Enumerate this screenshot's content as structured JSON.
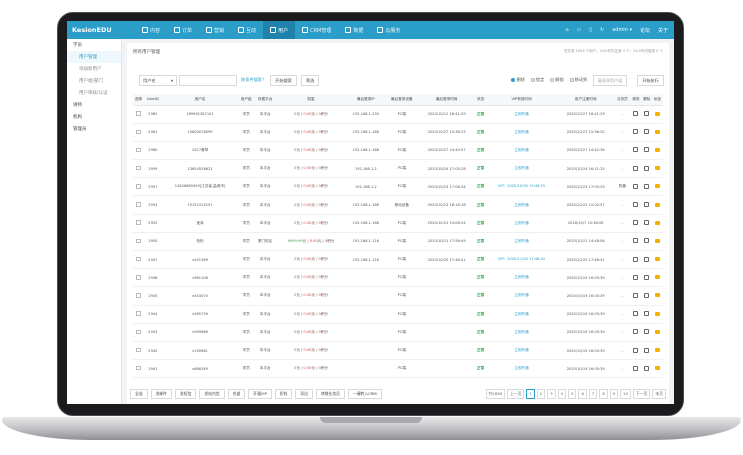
{
  "app": {
    "logo": "KesionEDU",
    "user": "admin ▾",
    "links": [
      "论坛",
      "关于"
    ]
  },
  "nav": [
    {
      "label": "内容",
      "icon": "grid-icon"
    },
    {
      "label": "订单",
      "icon": "order-icon"
    },
    {
      "label": "营销",
      "icon": "tag-icon"
    },
    {
      "label": "互动",
      "icon": "chat-icon"
    },
    {
      "label": "用户",
      "icon": "user-icon"
    },
    {
      "label": "CRM管理",
      "icon": "crm-icon"
    },
    {
      "label": "数据",
      "icon": "chart-icon"
    },
    {
      "label": "云服务",
      "icon": "cloud-icon"
    }
  ],
  "sidebar": [
    {
      "label": "学员",
      "type": "group"
    },
    {
      "label": "用户管理",
      "type": "sub",
      "active": true
    },
    {
      "label": "添加新用户",
      "type": "sub"
    },
    {
      "label": "用户组/部门",
      "type": "sub"
    },
    {
      "label": "用户审核/认证",
      "type": "sub"
    },
    {
      "label": "讲师",
      "type": "group"
    },
    {
      "label": "机构",
      "type": "group"
    },
    {
      "label": "管理员",
      "type": "group"
    }
  ],
  "breadcrumb": "所有用户管理",
  "hint": "您共有 1658 个用户，24小时内注册 0 个；24小时内登录 0 个",
  "filters": {
    "field": "用户名",
    "advanced": "按条件搜索？",
    "search": "开始搜索",
    "filter": "筛选",
    "radios": [
      "删除",
      "锁定",
      "解锁",
      "移动到"
    ],
    "group_select": "请选择用户组",
    "exec": "开始执行"
  },
  "table": {
    "headers": [
      "选择",
      "UserID",
      "用户名",
      "用户组",
      "所属平台",
      "财富",
      "最后登录IP",
      "最后登录设备",
      "最后登录时间",
      "状态",
      "VIP有效时间",
      "用户注册时间",
      "业务员",
      "修改",
      "删除",
      "私信"
    ],
    "rows": [
      {
        "id": "2962",
        "name": "189991387101",
        "group": "学员",
        "platform": "本平台",
        "money": "0",
        "score": "0.00",
        "point": "0",
        "ip": "192.168.1.235",
        "device": "PC端",
        "last": "2020/10/12 16:41:29",
        "status": "正常",
        "vip": "立即开通",
        "reg": "2020/10/27 16:41:29",
        "sales": "-"
      },
      {
        "id": "2961",
        "name": "15600078099",
        "group": "学员",
        "platform": "本平台",
        "money": "0",
        "score": "0.00",
        "point": "0",
        "ip": "192.168.1.168",
        "device": "PC端",
        "last": "2020/10/27 15:36:25",
        "status": "正常",
        "vip": "立即开通",
        "reg": "2020/10/27 15:36:20",
        "sales": "-"
      },
      {
        "id": "2960",
        "name": "1027黄琴",
        "group": "学员",
        "platform": "本平台",
        "money": "0",
        "score": "0.00",
        "point": "0",
        "ip": "192.168.1.168",
        "device": "PC端",
        "last": "2020/10/27 14:44:57",
        "status": "正常",
        "vip": "立即开通",
        "reg": "2020/10/27 14:42:38",
        "sales": "-"
      },
      {
        "id": "2959",
        "name": "13654526621",
        "group": "学员",
        "platform": "本平台",
        "money": "0",
        "score": "0.00",
        "point": "0",
        "ip": "192.168.1.2",
        "device": "PC端",
        "last": "2020/10/24 17:05:28",
        "status": "正常",
        "vip": "立即开通",
        "reg": "2020/10/24 16:11:25",
        "sales": "-"
      },
      {
        "id": "2957",
        "name": "13406680459[江苏省,盐城市]",
        "group": "学员",
        "platform": "本平台",
        "money": "0",
        "score": "0.00",
        "point": "0",
        "ip": "192.168.1.2",
        "device": "PC端",
        "last": "2020/10/23 17:08:34",
        "status": "正常",
        "vip": "VIP：2020/10/30 15:46:25",
        "reg": "2020/10/23 17:05:29",
        "sales": "陈晨"
      },
      {
        "id": "2953",
        "name": "15151515151",
        "group": "学员",
        "platform": "本平台",
        "money": "0",
        "score": "0.00",
        "point": "0",
        "ip": "192.168.1.168",
        "device": "移动设备",
        "last": "2020/10/23 16:16:18",
        "status": "正常",
        "vip": "立即开通",
        "reg": "2020/10/22 15:02:57",
        "sales": "-"
      },
      {
        "id": "2952",
        "name": "宝泽",
        "group": "学员",
        "platform": "本平台",
        "money": "0",
        "score": "0.00",
        "point": "0",
        "ip": "192.168.1.168",
        "device": "PC端",
        "last": "2020/10/23 14:08:54",
        "status": "正常",
        "vip": "立即开通",
        "reg": "2018/10/7 10:38:08",
        "sales": "-"
      },
      {
        "id": "2950",
        "name": "柏柏",
        "group": "学员",
        "platform": "厦门校区",
        "money": "9999.99",
        "score": "0.00",
        "point": "0",
        "ip": "192.168.1.116",
        "device": "PC端",
        "last": "2020/10/21 17:58:49",
        "status": "正常",
        "vip": "立即开通",
        "reg": "2020/10/21 14:48:06",
        "sales": "-"
      },
      {
        "id": "2947",
        "name": "v441369",
        "group": "学员",
        "platform": "本平台",
        "money": "0",
        "score": "0.00",
        "point": "0",
        "ip": "192.168.1.116",
        "device": "PC端",
        "last": "2020/10/20 17:48:41",
        "status": "正常",
        "vip": "VIP：2020/11/20 17:48:41",
        "reg": "2020/10/20 17:48:41",
        "sales": "-"
      },
      {
        "id": "2946",
        "name": "v961106",
        "group": "学员",
        "platform": "本平台",
        "money": "0",
        "score": "0.00",
        "point": "0",
        "ip": "",
        "device": "PC端",
        "last": "",
        "status": "正常",
        "vip": "立即开通",
        "reg": "2020/10/19 16:05:39",
        "sales": "-"
      },
      {
        "id": "2945",
        "name": "v443070",
        "group": "学员",
        "platform": "本平台",
        "money": "0",
        "score": "0.00",
        "point": "0",
        "ip": "",
        "device": "PC端",
        "last": "",
        "status": "正常",
        "vip": "立即开通",
        "reg": "2020/10/19 16:05:39",
        "sales": "-"
      },
      {
        "id": "2944",
        "name": "v565739",
        "group": "学员",
        "platform": "本平台",
        "money": "0",
        "score": "0.00",
        "point": "0",
        "ip": "",
        "device": "PC端",
        "last": "",
        "status": "正常",
        "vip": "立即开通",
        "reg": "2020/10/19 16:05:39",
        "sales": "-"
      },
      {
        "id": "2943",
        "name": "v999666",
        "group": "学员",
        "platform": "本平台",
        "money": "0",
        "score": "0.00",
        "point": "0",
        "ip": "",
        "device": "PC端",
        "last": "",
        "status": "正常",
        "vip": "立即开通",
        "reg": "2020/10/19 16:05:39",
        "sales": "-"
      },
      {
        "id": "2942",
        "name": "v130661",
        "group": "学员",
        "platform": "本平台",
        "money": "0",
        "score": "0.00",
        "point": "0",
        "ip": "",
        "device": "PC端",
        "last": "",
        "status": "正常",
        "vip": "立即开通",
        "reg": "2020/10/19 16:05:39",
        "sales": "-"
      },
      {
        "id": "2941",
        "name": "v686349",
        "group": "学员",
        "platform": "本平台",
        "money": "0",
        "score": "0.00",
        "point": "0",
        "ip": "",
        "device": "PC端",
        "last": "",
        "status": "正常",
        "vip": "立即开通",
        "reg": "2020/10/19 16:05:39",
        "sales": "-"
      }
    ]
  },
  "money_units": {
    "yuan": "元",
    "score": "积分"
  },
  "bottom_buttons": [
    "全选",
    "发邮件",
    "发短信",
    "发站内信",
    "合道",
    "开通VIP",
    "扣钱",
    "导出",
    "转移业务员",
    "一键转入CRM"
  ],
  "pager": {
    "total": "共1658",
    "pages": [
      "上一页",
      "1",
      "2",
      "3",
      "4",
      "5",
      "6",
      "7",
      "8",
      "9",
      "10",
      "下一页",
      "末页"
    ],
    "active": "1"
  }
}
